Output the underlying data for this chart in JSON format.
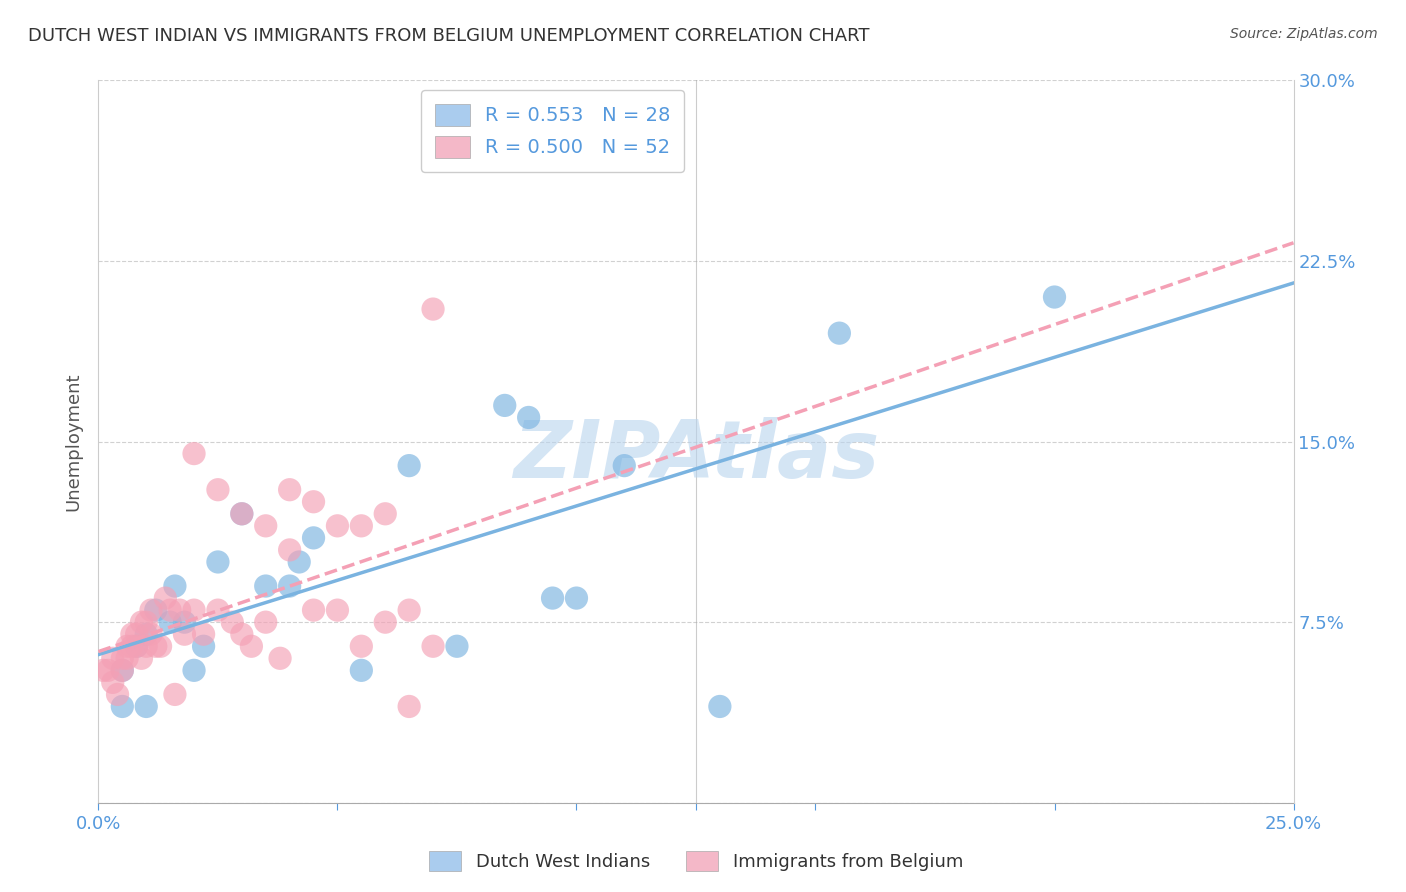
{
  "title": "DUTCH WEST INDIAN VS IMMIGRANTS FROM BELGIUM UNEMPLOYMENT CORRELATION CHART",
  "source": "Source: ZipAtlas.com",
  "ylabel": "Unemployment",
  "xlim": [
    0.0,
    0.25
  ],
  "ylim": [
    0.0,
    0.3
  ],
  "watermark": "ZIPAtlas",
  "watermark_color": "#b8d4ee",
  "series": [
    {
      "name": "Dutch West Indians",
      "color": "#7ab3e0",
      "line_style": "-",
      "R": 0.553,
      "N": 28,
      "x": [
        0.005,
        0.008,
        0.01,
        0.012,
        0.015,
        0.016,
        0.018,
        0.02,
        0.022,
        0.025,
        0.03,
        0.035,
        0.04,
        0.042,
        0.045,
        0.055,
        0.065,
        0.075,
        0.085,
        0.09,
        0.095,
        0.1,
        0.11,
        0.13,
        0.155,
        0.2,
        0.005,
        0.01
      ],
      "y": [
        0.055,
        0.065,
        0.07,
        0.08,
        0.075,
        0.09,
        0.075,
        0.055,
        0.065,
        0.1,
        0.12,
        0.09,
        0.09,
        0.1,
        0.11,
        0.055,
        0.14,
        0.065,
        0.165,
        0.16,
        0.085,
        0.085,
        0.14,
        0.04,
        0.195,
        0.21,
        0.04,
        0.04
      ]
    },
    {
      "name": "Immigrants from Belgium",
      "color": "#f4a0b5",
      "line_style": "--",
      "R": 0.5,
      "N": 52,
      "x": [
        0.001,
        0.002,
        0.003,
        0.003,
        0.004,
        0.005,
        0.005,
        0.006,
        0.006,
        0.007,
        0.007,
        0.008,
        0.008,
        0.009,
        0.009,
        0.01,
        0.01,
        0.011,
        0.011,
        0.012,
        0.013,
        0.014,
        0.015,
        0.016,
        0.017,
        0.018,
        0.02,
        0.022,
        0.025,
        0.028,
        0.03,
        0.032,
        0.035,
        0.038,
        0.04,
        0.045,
        0.05,
        0.055,
        0.06,
        0.065,
        0.07,
        0.02,
        0.025,
        0.03,
        0.035,
        0.04,
        0.045,
        0.05,
        0.055,
        0.06,
        0.065,
        0.07
      ],
      "y": [
        0.055,
        0.055,
        0.05,
        0.06,
        0.045,
        0.055,
        0.06,
        0.06,
        0.065,
        0.065,
        0.07,
        0.065,
        0.07,
        0.06,
        0.075,
        0.065,
        0.075,
        0.07,
        0.08,
        0.065,
        0.065,
        0.085,
        0.08,
        0.045,
        0.08,
        0.07,
        0.08,
        0.07,
        0.08,
        0.075,
        0.07,
        0.065,
        0.075,
        0.06,
        0.105,
        0.08,
        0.08,
        0.065,
        0.075,
        0.08,
        0.065,
        0.145,
        0.13,
        0.12,
        0.115,
        0.13,
        0.125,
        0.115,
        0.115,
        0.12,
        0.04,
        0.205
      ]
    }
  ],
  "legend_items": [
    {
      "label_r": "R = 0.553",
      "label_n": "N = 28",
      "color": "#aaccee"
    },
    {
      "label_r": "R = 0.500",
      "label_n": "N = 52",
      "color": "#f4b8c8"
    }
  ],
  "bottom_legend": [
    "Dutch West Indians",
    "Immigrants from Belgium"
  ],
  "bottom_legend_colors": [
    "#aaccee",
    "#f4b8c8"
  ],
  "title_color": "#333333",
  "axis_color": "#5599dd",
  "grid_color": "#cccccc",
  "background_color": "#ffffff"
}
